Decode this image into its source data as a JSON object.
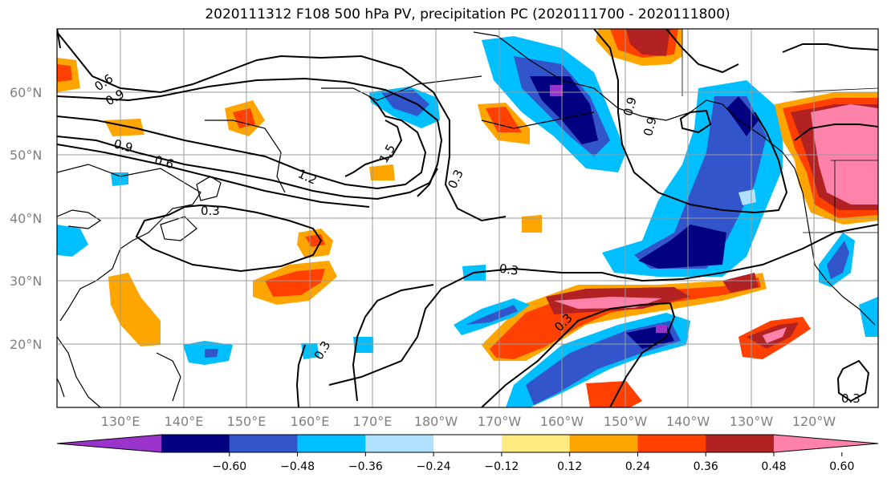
{
  "title": "2020111312 F108 500 hPa PV, precipitation PC (2020111700 - 2020111800)",
  "map": {
    "lat_labels": [
      "60°N",
      "50°N",
      "40°N",
      "30°N",
      "20°N"
    ],
    "lon_labels": [
      "130°E",
      "140°E",
      "150°E",
      "160°E",
      "170°E",
      "180°W",
      "170°W",
      "160°W",
      "150°W",
      "140°W",
      "130°W",
      "120°W"
    ],
    "contour_labels": [
      "0.6",
      "0.9",
      "0.9",
      "0.6",
      "1.2",
      "1.5",
      "0.3",
      "0.3",
      "0.9",
      "0.9",
      "0.3",
      "0.3",
      "0.3",
      "0.3"
    ]
  },
  "colorbar": {
    "ticks": [
      "−0.60",
      "−0.48",
      "−0.36",
      "−0.24",
      "−0.12",
      "0.12",
      "0.24",
      "0.36",
      "0.48",
      "0.60"
    ],
    "colors": [
      "#9933cc",
      "#000080",
      "#3355cc",
      "#00bfff",
      "#b0e2ff",
      "#ffffff",
      "#ffeb80",
      "#ffa500",
      "#ff4000",
      "#b22222",
      "#ff82ab"
    ]
  }
}
